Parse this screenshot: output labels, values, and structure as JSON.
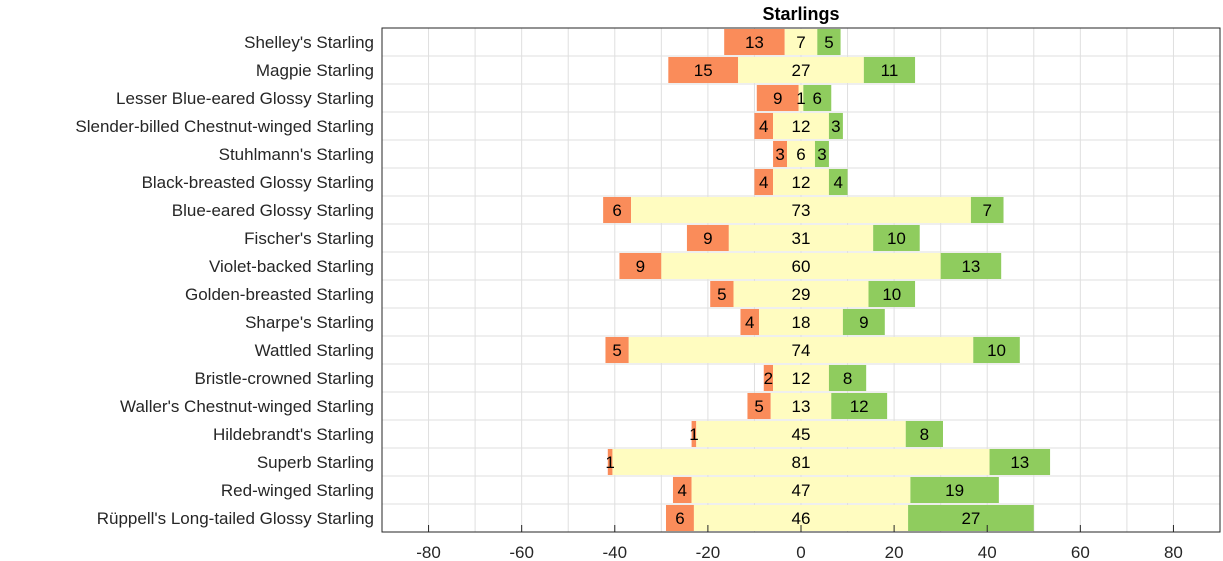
{
  "chart_data": {
    "type": "bar",
    "orientation": "horizontal",
    "stacking": "diverging",
    "title": "Starlings",
    "xlim": [
      -90,
      90
    ],
    "xticks": [
      -80,
      -60,
      -40,
      -20,
      0,
      20,
      40,
      60,
      80
    ],
    "grid": true,
    "colors": {
      "negative": "#fa8c5a",
      "neutral": "#fffcc0",
      "positive": "#8fcc5e"
    },
    "categories": [
      "Shelley's Starling",
      "Magpie Starling",
      "Lesser Blue-eared Glossy Starling",
      "Slender-billed Chestnut-winged Starling",
      "Stuhlmann's Starling",
      "Black-breasted Glossy Starling",
      "Blue-eared Glossy Starling",
      "Fischer's Starling",
      "Violet-backed Starling",
      "Golden-breasted Starling",
      "Sharpe's Starling",
      "Wattled Starling",
      "Bristle-crowned Starling",
      "Waller's Chestnut-winged Starling",
      "Hildebrandt's Starling",
      "Superb Starling",
      "Red-winged Starling",
      "Rüppell's Long-tailed Glossy Starling"
    ],
    "series": [
      {
        "values": [
          13,
          15,
          9,
          4,
          3,
          4,
          6,
          9,
          9,
          5,
          4,
          5,
          2,
          5,
          1,
          1,
          4,
          6
        ]
      },
      {
        "values": [
          7,
          27,
          1,
          12,
          6,
          12,
          73,
          31,
          60,
          29,
          18,
          74,
          12,
          13,
          45,
          81,
          47,
          46
        ]
      },
      {
        "values": [
          5,
          11,
          6,
          3,
          3,
          4,
          7,
          10,
          13,
          10,
          9,
          10,
          8,
          12,
          8,
          13,
          19,
          27
        ]
      }
    ]
  }
}
